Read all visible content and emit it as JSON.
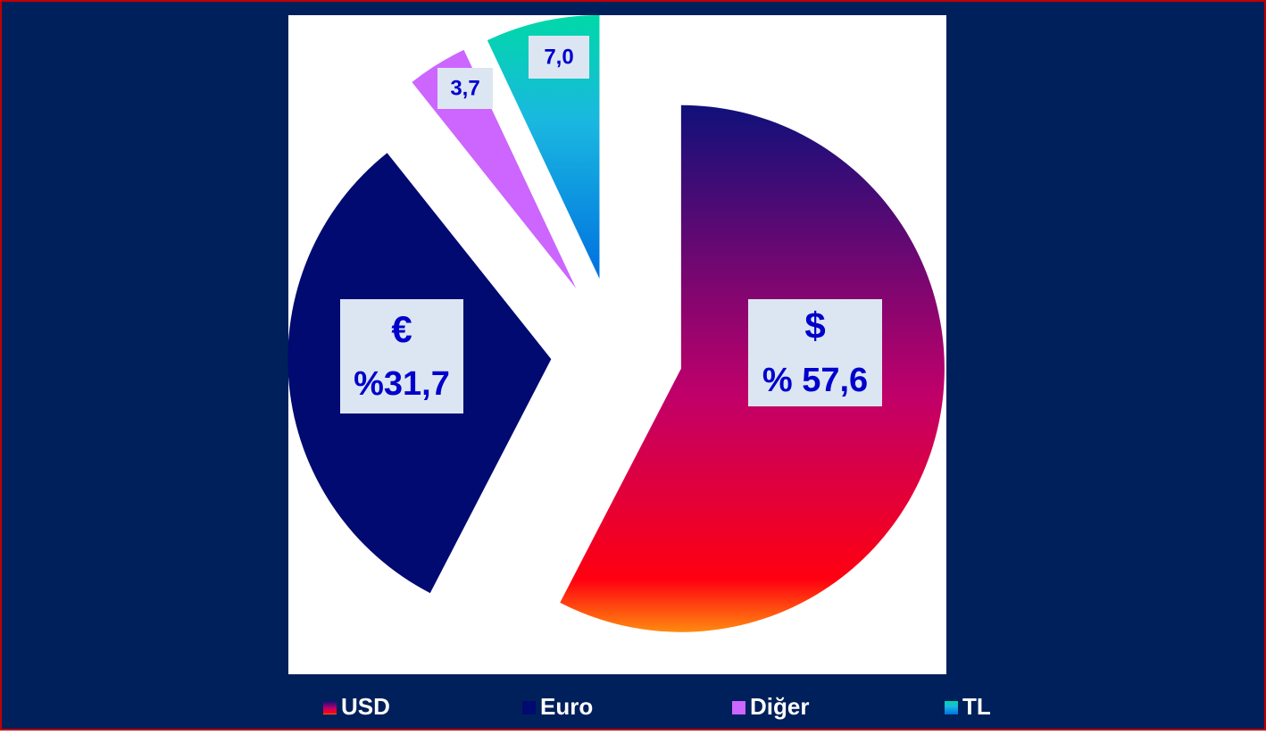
{
  "chart_data": {
    "type": "pie",
    "categories": [
      "USD",
      "Euro",
      "Diğer",
      "TL"
    ],
    "values": [
      57.6,
      31.7,
      3.7,
      7.0
    ],
    "value_labels": [
      "% 57,6",
      "%31,7",
      "3,7",
      "7,0"
    ],
    "symbols": [
      "$",
      "€",
      null,
      null
    ],
    "colors": [
      "#c0006a",
      "#0033dd",
      "#cc66ff",
      "#1ab8e0"
    ],
    "legend": "bottom"
  }
}
